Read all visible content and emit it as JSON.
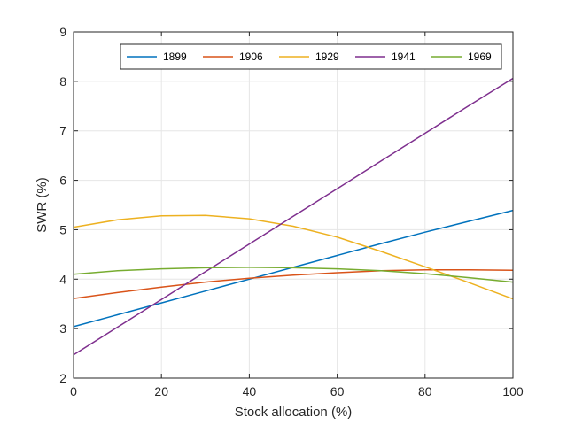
{
  "chart_data": {
    "type": "line",
    "title": "",
    "xlabel": "Stock allocation (%)",
    "ylabel": "SWR (%)",
    "xlim": [
      0,
      100
    ],
    "ylim": [
      2,
      9
    ],
    "xticks": [
      0,
      20,
      40,
      60,
      80,
      100
    ],
    "yticks": [
      2,
      3,
      4,
      5,
      6,
      7,
      8,
      9
    ],
    "grid": true,
    "legend_position": "top-right",
    "x": [
      0,
      10,
      20,
      30,
      40,
      50,
      60,
      70,
      80,
      90,
      100
    ],
    "series": [
      {
        "name": "1899",
        "color": "#0072BD",
        "values": [
          3.04,
          3.28,
          3.52,
          3.76,
          4.0,
          4.24,
          4.48,
          4.72,
          4.95,
          5.17,
          5.39
        ]
      },
      {
        "name": "1906",
        "color": "#D95319",
        "values": [
          3.61,
          3.73,
          3.84,
          3.94,
          4.02,
          4.08,
          4.13,
          4.17,
          4.19,
          4.19,
          4.18
        ]
      },
      {
        "name": "1929",
        "color": "#EDB120",
        "values": [
          5.05,
          5.2,
          5.28,
          5.29,
          5.22,
          5.07,
          4.85,
          4.56,
          4.25,
          3.93,
          3.6
        ]
      },
      {
        "name": "1941",
        "color": "#7E2F8E",
        "values": [
          2.47,
          3.03,
          3.59,
          4.15,
          4.71,
          5.27,
          5.83,
          6.39,
          6.95,
          7.51,
          8.06
        ]
      },
      {
        "name": "1969",
        "color": "#77AC30",
        "values": [
          4.1,
          4.17,
          4.21,
          4.23,
          4.24,
          4.23,
          4.21,
          4.17,
          4.11,
          4.03,
          3.94
        ]
      }
    ]
  }
}
